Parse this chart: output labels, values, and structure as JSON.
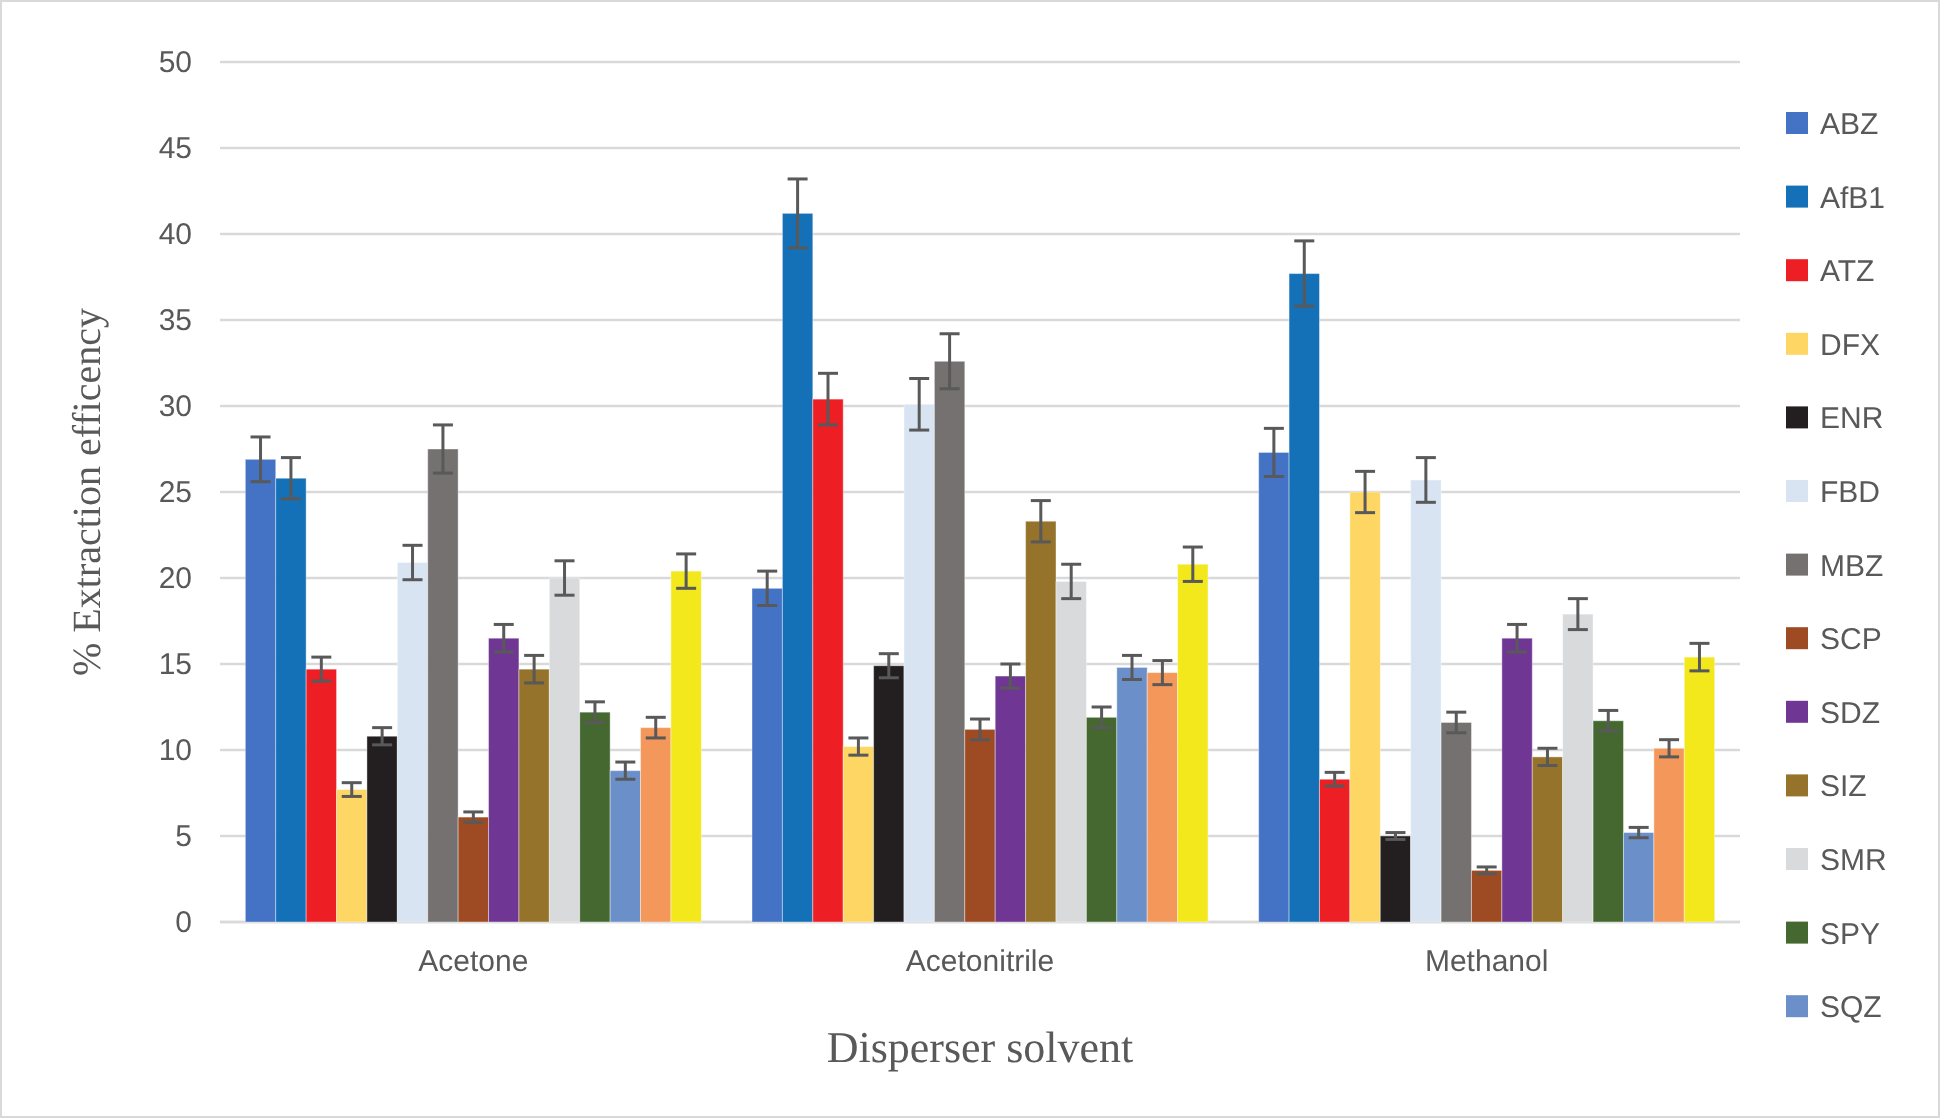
{
  "chart_data": {
    "type": "bar",
    "xlabel": "Disperser solvent",
    "ylabel": "% Extraction efficency",
    "categories": [
      "Acetone",
      "Acetonitrile",
      "Methanol"
    ],
    "ylim": [
      0,
      50
    ],
    "yticks": [
      0,
      5,
      10,
      15,
      20,
      25,
      30,
      35,
      40,
      45,
      50
    ],
    "grid": "y",
    "legend": "right",
    "series": [
      {
        "name": "ABZ",
        "color": "#4472c4",
        "values": [
          26.9,
          19.4,
          27.3
        ],
        "errors": [
          1.3,
          1.0,
          1.4
        ]
      },
      {
        "name": "AfB1",
        "color": "#1471b8",
        "values": [
          25.8,
          41.2,
          37.7
        ],
        "errors": [
          1.2,
          2.0,
          1.9
        ]
      },
      {
        "name": "ATZ",
        "color": "#ed1f24",
        "values": [
          14.7,
          30.4,
          8.3
        ],
        "errors": [
          0.7,
          1.5,
          0.4
        ]
      },
      {
        "name": "DFX",
        "color": "#fdd663",
        "values": [
          7.7,
          10.2,
          25.0
        ],
        "errors": [
          0.4,
          0.5,
          1.2
        ]
      },
      {
        "name": "ENR",
        "color": "#231f20",
        "values": [
          10.8,
          14.9,
          5.0
        ],
        "errors": [
          0.5,
          0.7,
          0.2
        ]
      },
      {
        "name": "FBD",
        "color": "#d9e4f3",
        "values": [
          20.9,
          30.1,
          25.7
        ],
        "errors": [
          1.0,
          1.5,
          1.3
        ]
      },
      {
        "name": "MBZ",
        "color": "#757171",
        "values": [
          27.5,
          32.6,
          11.6
        ],
        "errors": [
          1.4,
          1.6,
          0.6
        ]
      },
      {
        "name": "SCP",
        "color": "#9e4a23",
        "values": [
          6.1,
          11.2,
          3.0
        ],
        "errors": [
          0.3,
          0.6,
          0.2
        ]
      },
      {
        "name": "SDZ",
        "color": "#6f3793",
        "values": [
          16.5,
          14.3,
          16.5
        ],
        "errors": [
          0.8,
          0.7,
          0.8
        ]
      },
      {
        "name": "SIZ",
        "color": "#95732a",
        "values": [
          14.7,
          23.3,
          9.6
        ],
        "errors": [
          0.8,
          1.2,
          0.5
        ]
      },
      {
        "name": "SMR",
        "color": "#d9dadb",
        "values": [
          20.0,
          19.8,
          17.9
        ],
        "errors": [
          1.0,
          1.0,
          0.9
        ]
      },
      {
        "name": "SPY",
        "color": "#446830",
        "values": [
          12.2,
          11.9,
          11.7
        ],
        "errors": [
          0.6,
          0.6,
          0.6
        ]
      },
      {
        "name": "SQZ",
        "color": "#6b8fc8",
        "values": [
          8.8,
          14.8,
          5.2
        ],
        "errors": [
          0.5,
          0.7,
          0.3
        ]
      },
      {
        "color": "#f3985a",
        "values": [
          11.3,
          14.5,
          10.1
        ],
        "errors": [
          0.6,
          0.7,
          0.5
        ]
      },
      {
        "color": "#f2e81c",
        "values": [
          20.4,
          20.8,
          15.4
        ],
        "errors": [
          1.0,
          1.0,
          0.8
        ]
      }
    ]
  }
}
